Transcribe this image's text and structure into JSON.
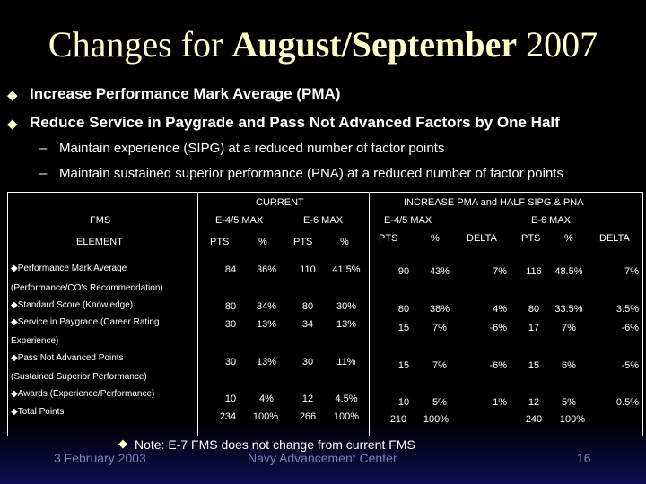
{
  "slide": {
    "title_pre": "Changes for ",
    "title_bold": "August/September",
    "title_post": " 2007",
    "bullets": [
      "Increase Performance Mark Average (PMA)",
      "Reduce Service in Paygrade and Pass Not Advanced Factors by One Half"
    ],
    "sub_bullets": [
      "Maintain experience (SIPG) at a reduced number of factor points",
      "Maintain sustained superior performance (PNA) at a reduced number of factor points"
    ],
    "dash": "–",
    "bullet_glyph": "u"
  },
  "table": {
    "current_header": "CURRENT",
    "increase_header": "INCREASE PMA and HALF SIPG & PNA",
    "fms_label": "FMS",
    "element_label": "ELEMENT",
    "e45_max": "E-4/5 MAX",
    "e6_max": "E-6 MAX",
    "pts": "PTS",
    "pct": "%",
    "delta": "DELTA",
    "rows": [
      {
        "label": "Performance Mark Average",
        "label2": "(Performance/CO's Recommendation)",
        "c": [
          "84",
          "36%",
          "110",
          "41.5%"
        ],
        "n": [
          "90",
          "43%",
          "7%",
          "116",
          "48.5%",
          "7%"
        ]
      },
      {
        "label": "Standard Score (Knowledge)",
        "label2": "",
        "c": [
          "80",
          "34%",
          "80",
          "30%"
        ],
        "n": [
          "80",
          "38%",
          "4%",
          "80",
          "33.5%",
          "3.5%"
        ]
      },
      {
        "label": "Service in Paygrade (Career Rating",
        "label2": "Experience)",
        "c": [
          "30",
          "13%",
          "34",
          "13%"
        ],
        "n": [
          "15",
          "7%",
          "-6%",
          "17",
          "7%",
          "-6%"
        ]
      },
      {
        "label": "Pass Not Advanced Points",
        "label2": "(Sustained Superior Performance)",
        "c": [
          "30",
          "13%",
          "30",
          "11%"
        ],
        "n": [
          "15",
          "7%",
          "-6%",
          "15",
          "6%",
          "-5%"
        ]
      },
      {
        "label": "Awards (Experience/Performance)",
        "label2": "",
        "c": [
          "10",
          "4%",
          "12",
          "4.5%"
        ],
        "n": [
          "10",
          "5%",
          "1%",
          "12",
          "5%",
          "0.5%"
        ]
      },
      {
        "label": "Total Points",
        "label2": "",
        "c": [
          "234",
          "100%",
          "266",
          "100%"
        ],
        "n": [
          "210",
          "100%",
          "",
          "240",
          "100%",
          ""
        ]
      }
    ]
  },
  "footer": {
    "note": "Note: E-7 FMS does not change from current FMS",
    "date": "3 February 2003",
    "center": "Navy Advancement Center",
    "page": "16"
  }
}
